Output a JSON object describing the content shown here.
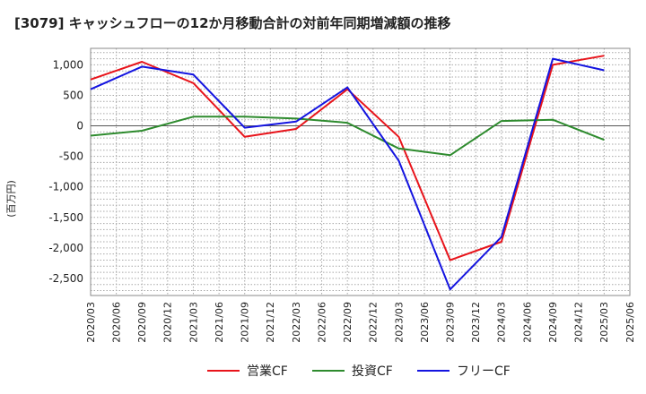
{
  "chart_data": {
    "type": "line",
    "title": "[3079]  キャッシュフローの12か月移動合計の対前年同期増減額の推移",
    "xlabel": "",
    "ylabel": "(百万円)",
    "ylim": [
      -2780,
      1270
    ],
    "yticks": [
      1000,
      500,
      0,
      -500,
      -1000,
      -1500,
      -2000,
      -2500
    ],
    "ytick_labels": [
      "1,000",
      "500",
      "0",
      "-500",
      "-1,000",
      "-1,500",
      "-2,000",
      "-2,500"
    ],
    "categories": [
      "2020/03",
      "2020/06",
      "2020/09",
      "2020/12",
      "2021/03",
      "2021/06",
      "2021/09",
      "2021/12",
      "2022/03",
      "2022/06",
      "2022/09",
      "2022/12",
      "2023/03",
      "2023/06",
      "2023/09",
      "2023/12",
      "2024/03",
      "2024/06",
      "2024/09",
      "2024/12",
      "2025/03",
      "2025/06"
    ],
    "series": [
      {
        "name": "営業CF",
        "color": "#e8141b",
        "values": [
          760,
          null,
          1050,
          null,
          700,
          null,
          -180,
          null,
          -50,
          null,
          600,
          null,
          -180,
          null,
          -2200,
          null,
          -1900,
          null,
          1000,
          null,
          1150,
          null
        ]
      },
      {
        "name": "投資CF",
        "color": "#2e8b2e",
        "values": [
          -160,
          null,
          -80,
          null,
          150,
          null,
          150,
          null,
          120,
          null,
          50,
          null,
          -370,
          null,
          -480,
          null,
          80,
          null,
          100,
          null,
          -230,
          null
        ]
      },
      {
        "name": "フリーCF",
        "color": "#1414e0",
        "values": [
          600,
          null,
          970,
          null,
          840,
          null,
          -30,
          null,
          70,
          null,
          630,
          null,
          -570,
          null,
          -2680,
          null,
          -1820,
          null,
          1100,
          null,
          910,
          null
        ]
      }
    ],
    "grid": true,
    "legend_position": "bottom"
  }
}
